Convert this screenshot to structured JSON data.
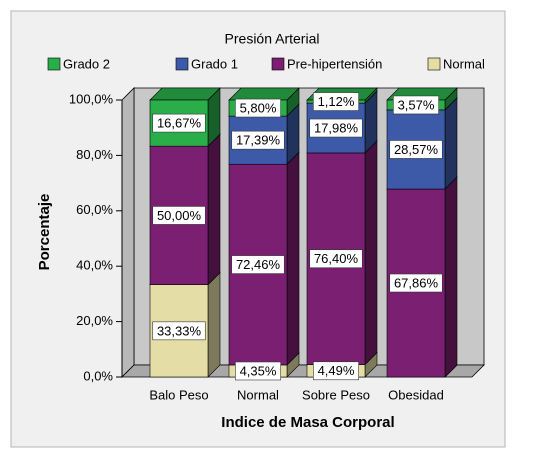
{
  "chart_data": {
    "type": "bar3d_stacked",
    "title": "Presión Arterial",
    "x_label": "Indice de Masa Corporal",
    "y_label": "Porcentaje",
    "categories": [
      "Balo Peso",
      "Normal",
      "Sobre Peso",
      "Obesidad"
    ],
    "series": [
      {
        "name": "Grado 2",
        "color": "#2aae4a",
        "values": [
          16.67,
          5.8,
          1.12,
          3.57
        ],
        "value_labels": [
          "16,67%",
          "5,80%",
          "1,12%",
          "3,57%"
        ]
      },
      {
        "name": "Grado 1",
        "color": "#3c5aa8",
        "values": [
          0,
          17.39,
          17.98,
          28.57
        ],
        "value_labels": [
          null,
          "17,39%",
          "17,98%",
          "28,57%"
        ]
      },
      {
        "name": "Pre-hipertensión",
        "color": "#7b1f72",
        "values": [
          50.0,
          72.46,
          76.4,
          67.86
        ],
        "value_labels": [
          "50,00%",
          "72,46%",
          "76,40%",
          "67,86%"
        ]
      },
      {
        "name": "Normal",
        "color": "#e4dea6",
        "values": [
          33.33,
          4.35,
          4.49,
          0
        ],
        "value_labels": [
          "33,33%",
          "4,35%",
          "4,49%",
          null
        ]
      }
    ],
    "stacking": "legend_reversed",
    "ylim": [
      0,
      100
    ],
    "yticks": [
      {
        "value": 0,
        "label": "0,0%"
      },
      {
        "value": 20,
        "label": "20,0%"
      },
      {
        "value": 40,
        "label": "40,0%"
      },
      {
        "value": 60,
        "label": "60,0%"
      },
      {
        "value": 80,
        "label": "80,0%"
      },
      {
        "value": 100,
        "label": "100,0%"
      }
    ],
    "legend": "top"
  }
}
